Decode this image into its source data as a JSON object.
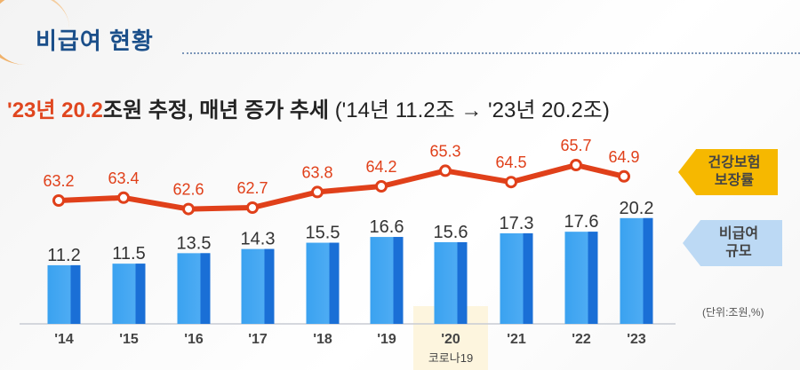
{
  "header": {
    "title": "비급여 현황",
    "subtitle_highlight": "'23년 20.2",
    "subtitle_main": "조원 추정, 매년 증가 추세",
    "subtitle_paren": "('14년 11.2조 → '23년 20.2조)"
  },
  "legend": {
    "line_label_1": "건강보험",
    "line_label_2": "보장률",
    "bar_label_1": "비급여",
    "bar_label_2": "규모"
  },
  "unit_note": "(단위:조원,%)",
  "chart_data": {
    "type": "bar+line",
    "title": "비급여 현황",
    "categories": [
      "'14",
      "'15",
      "'16",
      "'17",
      "'18",
      "'19",
      "'20",
      "'21",
      "'22",
      "'23"
    ],
    "annotations": [
      {
        "category": "'20",
        "text": "코로나19"
      }
    ],
    "series": [
      {
        "name": "비급여 규모",
        "type": "bar",
        "unit": "조원",
        "values": [
          11.2,
          11.5,
          13.5,
          14.3,
          15.5,
          16.6,
          15.6,
          17.3,
          17.6,
          20.2
        ]
      },
      {
        "name": "건강보험 보장률",
        "type": "line",
        "unit": "%",
        "values": [
          63.2,
          63.4,
          62.6,
          62.7,
          63.8,
          64.2,
          65.3,
          64.5,
          65.7,
          64.9
        ]
      }
    ],
    "colors": {
      "bar": "#2e95ea",
      "bar_dark": "#1a6fd6",
      "line": "#e0401a",
      "highlight": "#fdf3d6"
    }
  }
}
